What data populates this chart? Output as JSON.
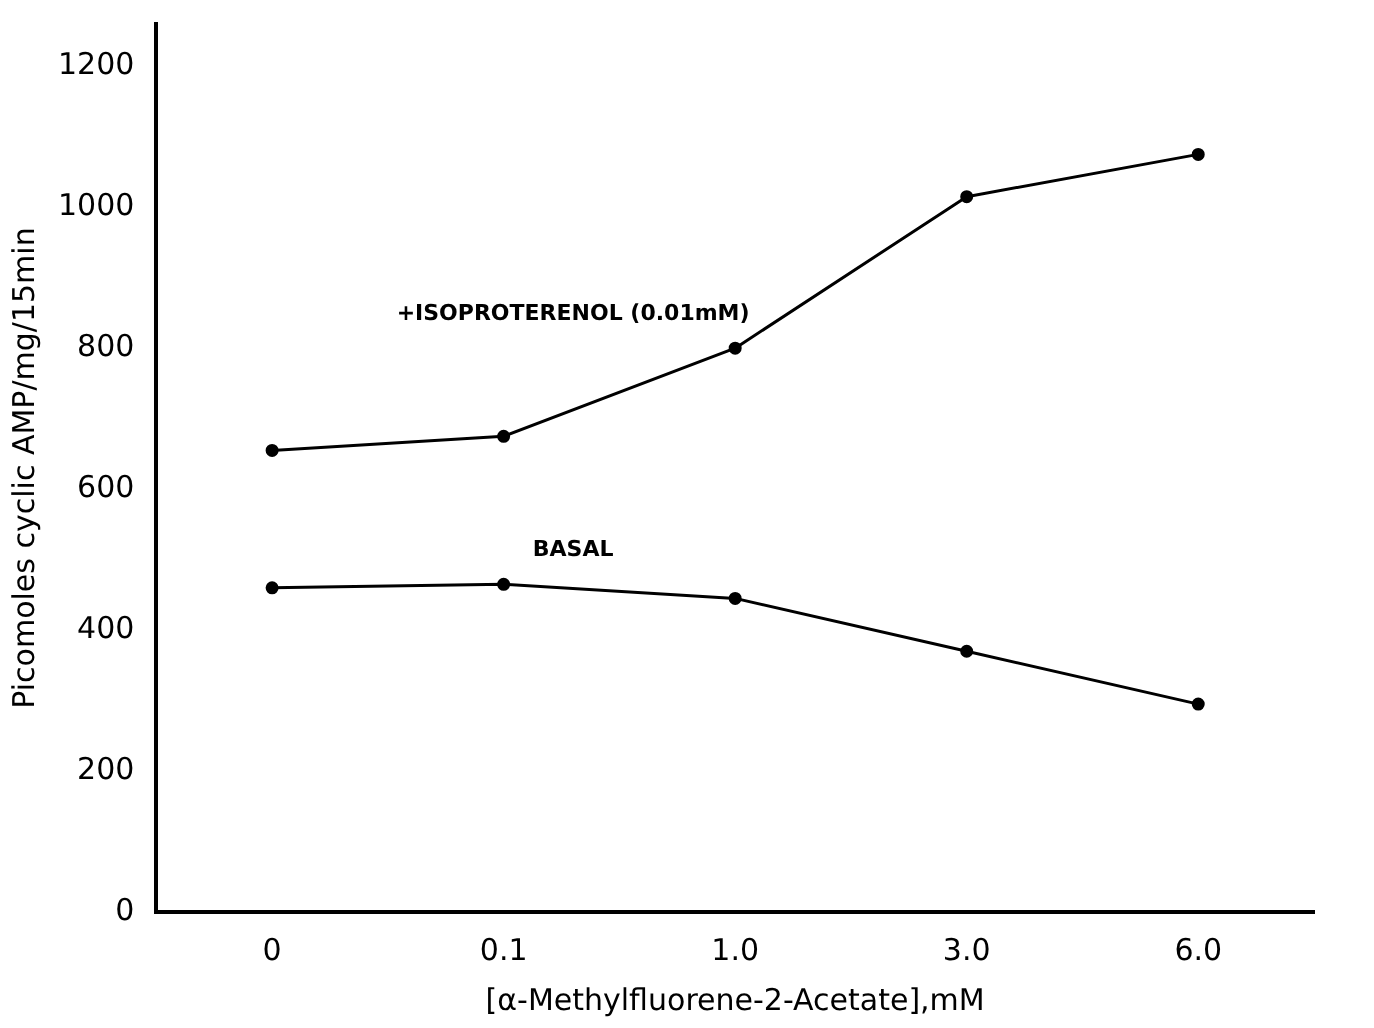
{
  "chart_data": {
    "type": "line",
    "xlabel": "[α-Methylfluorene-2-Acetate],mM",
    "ylabel": "Picomoles cyclic AMP/mg/15min",
    "categories": [
      "0",
      "0.1",
      "1.0",
      "3.0",
      "6.0"
    ],
    "series": [
      {
        "name": "+ISOPROTERENOL (0.01mM)",
        "color": "#000000",
        "values": [
          655,
          675,
          800,
          1015,
          1075
        ]
      },
      {
        "name": "BASAL",
        "color": "#000000",
        "values": [
          460,
          465,
          445,
          370,
          295
        ]
      }
    ],
    "ylim": [
      0,
      1260
    ],
    "yticks": [
      0,
      200,
      400,
      600,
      800,
      1000,
      1200
    ],
    "grid": false,
    "legend": false,
    "marker": "circle",
    "line_style": "solid"
  }
}
